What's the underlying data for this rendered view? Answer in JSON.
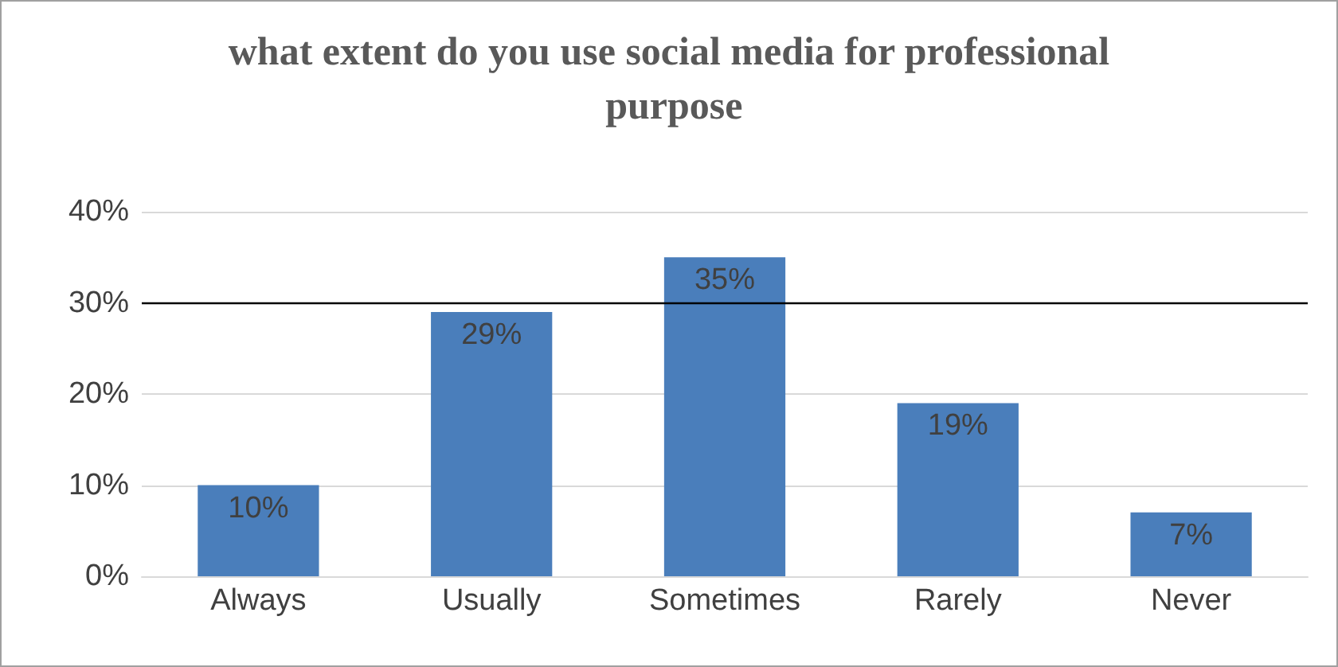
{
  "chart_data": {
    "type": "bar",
    "title": "what extent do you use social media for professional purpose",
    "categories": [
      "Always",
      "Usually",
      "Sometimes",
      "Rarely",
      "Never"
    ],
    "values": [
      10,
      29,
      35,
      19,
      7
    ],
    "value_labels": [
      "10%",
      "29%",
      "35%",
      "19%",
      "7%"
    ],
    "color": "#4a7ebb",
    "ylim": [
      0,
      40
    ],
    "yticks": [
      {
        "value": 0,
        "label": "0%"
      },
      {
        "value": 10,
        "label": "10%"
      },
      {
        "value": 20,
        "label": "20%"
      },
      {
        "value": 30,
        "label": "30%"
      },
      {
        "value": 40,
        "label": "40%"
      }
    ],
    "grid": "y",
    "ref_lines": [
      {
        "axis": "y",
        "value": 30,
        "label": null,
        "color": "#000000"
      }
    ]
  }
}
